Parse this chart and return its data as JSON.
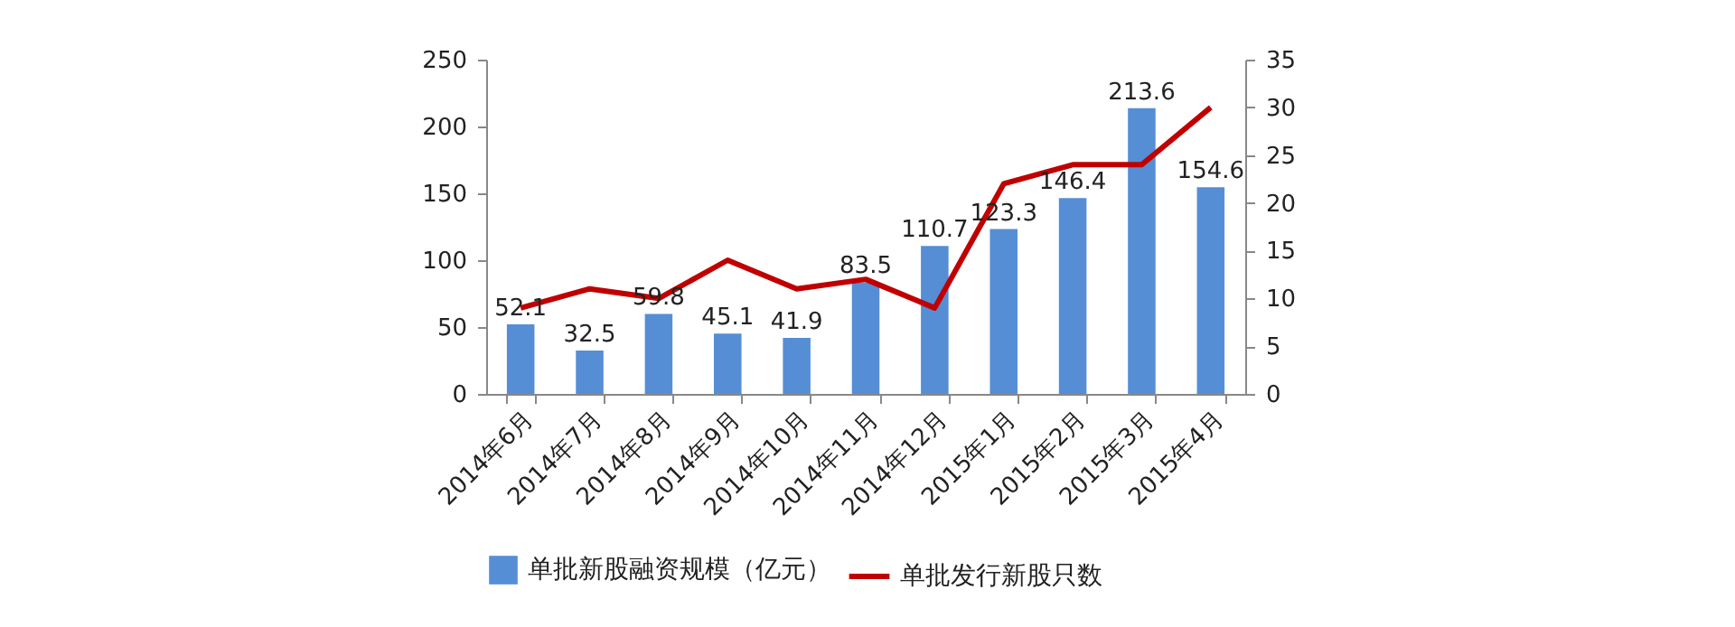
{
  "chart_data": {
    "type": "bar",
    "categories": [
      "2014年6月",
      "2014年7月",
      "2014年8月",
      "2014年9月",
      "2014年10月",
      "2014年11月",
      "2014年12月",
      "2015年1月",
      "2015年2月",
      "2015年3月",
      "2015年4月"
    ],
    "series": [
      {
        "name": "单批新股融资规模（亿元）",
        "color": "#558ed5",
        "values": [
          52.1,
          32.5,
          59.8,
          45.1,
          41.9,
          83.5,
          110.7,
          123.3,
          146.4,
          213.6,
          154.6
        ],
        "value_labels": [
          "52.1",
          "32.5",
          "59.8",
          "45.1",
          "41.9",
          "83.5",
          "110.7",
          "123.3",
          "146.4",
          "213.6",
          "154.6"
        ]
      },
      {
        "name": "单批发行新股只数",
        "type": "line",
        "axis": "y2",
        "color": "#c00000",
        "values": [
          9,
          11,
          10,
          14,
          11,
          12,
          9,
          22,
          24,
          24,
          30
        ]
      }
    ],
    "ylim": [
      0,
      250
    ],
    "yticks": [
      0,
      50,
      100,
      150,
      200,
      250
    ],
    "y2lim": [
      0,
      35
    ],
    "y2ticks": [
      0,
      5,
      10,
      15,
      20,
      25,
      30,
      35
    ],
    "legend": "bottom",
    "grid": false
  }
}
